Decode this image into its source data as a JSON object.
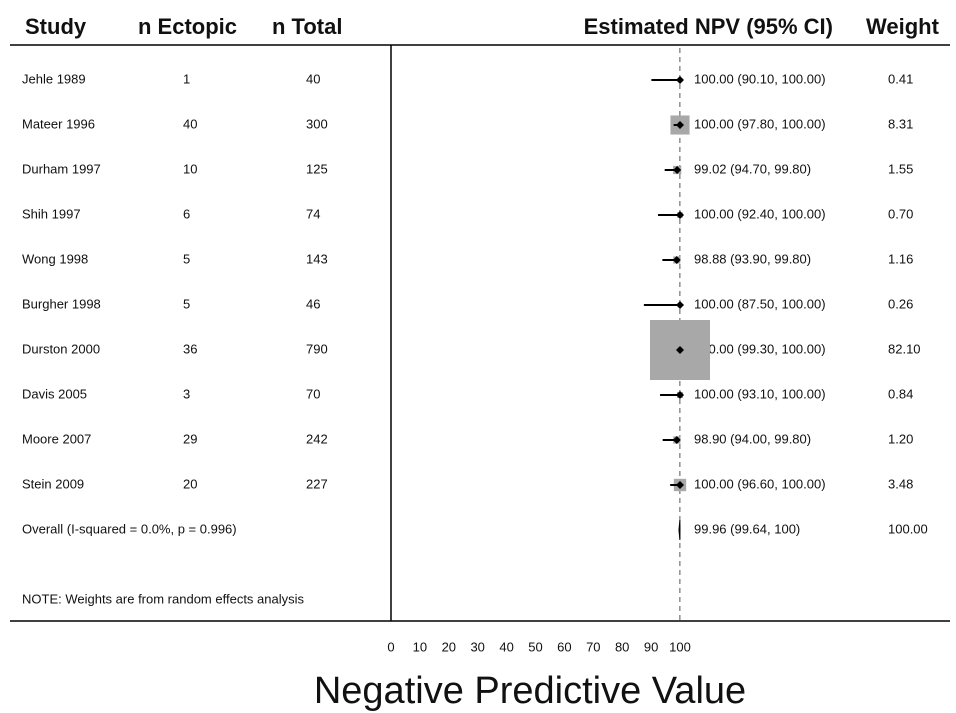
{
  "chart_data": {
    "type": "forest",
    "columns": [
      "Study",
      "n Ectopic",
      "n Total",
      "Estimated NPV (95% CI)",
      "Weight"
    ],
    "studies": [
      "Jehle 1989",
      "Mateer 1996",
      "Durham 1997",
      "Shih 1997",
      "Wong 1998",
      "Burgher 1998",
      "Durston 2000",
      "Davis 2005",
      "Moore 2007",
      "Stein 2009"
    ],
    "n_ectopic": [
      1,
      40,
      10,
      6,
      5,
      5,
      36,
      3,
      29,
      20
    ],
    "n_total": [
      40,
      300,
      125,
      74,
      143,
      46,
      790,
      70,
      242,
      227
    ],
    "values": [
      100,
      100,
      99.02,
      100,
      98.88,
      100,
      100,
      100,
      98.9,
      100
    ],
    "lower": [
      90.1,
      97.8,
      94.7,
      92.4,
      93.9,
      87.5,
      99.3,
      93.1,
      94.0,
      96.6
    ],
    "upper": [
      100,
      100,
      99.8,
      100,
      99.8,
      100,
      100,
      100,
      99.8,
      100
    ],
    "value_labels": [
      "100.00 (90.10, 100.00)",
      "100.00 (97.80, 100.00)",
      "99.02 (94.70, 99.80)",
      "100.00 (92.40, 100.00)",
      "98.88 (93.90, 99.80)",
      "100.00 (87.50, 100.00)",
      "100.00 (99.30, 100.00)",
      "100.00 (93.10, 100.00)",
      "98.90 (94.00, 99.80)",
      "100.00 (96.60, 100.00)"
    ],
    "weights": [
      0.41,
      8.31,
      1.55,
      0.7,
      1.16,
      0.26,
      82.1,
      0.84,
      1.2,
      3.48
    ],
    "weight_labels": [
      "0.41",
      "8.31",
      "1.55",
      "0.70",
      "1.16",
      "0.26",
      "82.10",
      "0.84",
      "1.20",
      "3.48"
    ],
    "overall": {
      "label": "Overall  (I-squared = 0.0%, p = 0.996)",
      "value": 99.96,
      "lower": 99.64,
      "upper": 100,
      "value_label": "99.96 (99.64, 100)",
      "weight": 100,
      "weight_label": "100.00"
    },
    "note": "NOTE: Weights are from random effects analysis",
    "xlabel": "Negative Predictive Value",
    "xlim": [
      0,
      100
    ],
    "xticks": [
      0,
      10,
      20,
      30,
      40,
      50,
      60,
      70,
      80,
      90,
      100
    ],
    "box_color": "#a8a8a8"
  }
}
